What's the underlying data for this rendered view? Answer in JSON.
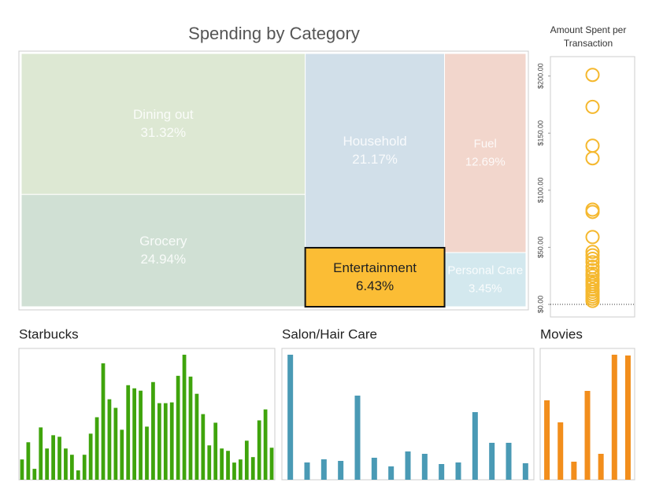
{
  "chart_data": [
    {
      "type": "treemap",
      "title": "Spending by Category",
      "categories": [
        "Dining out",
        "Grocery",
        "Household",
        "Fuel",
        "Entertainment",
        "Personal Care"
      ],
      "values": [
        31.32,
        24.94,
        21.17,
        12.69,
        6.43,
        3.45
      ],
      "value_labels": [
        "31.32%",
        "24.94%",
        "21.17%",
        "12.69%",
        "6.43%",
        "3.45%"
      ],
      "colors": [
        "#dde8d3",
        "#d0e0d4",
        "#d1dfe9",
        "#f2d6cc",
        "#fbbd35",
        "#d3e8ee"
      ],
      "selected_index": 4
    },
    {
      "type": "scatter",
      "title": "Amount Spent per Transaction",
      "color": "#f5b82e",
      "values": [
        201,
        173,
        139,
        128,
        83,
        81,
        59,
        46,
        43,
        40,
        37,
        33,
        30,
        27,
        25,
        22,
        20,
        18,
        16,
        13,
        11,
        9,
        7,
        5,
        3
      ],
      "ylim": [
        -11,
        217
      ],
      "yticks": [
        {
          "value": 0,
          "label": "$0.00"
        },
        {
          "value": 50,
          "label": "$50.00"
        },
        {
          "value": 100,
          "label": "$100.00"
        },
        {
          "value": 150,
          "label": "$150.00"
        },
        {
          "value": 200,
          "label": "$200.00"
        }
      ]
    },
    {
      "type": "bar",
      "title": "Starbucks",
      "color": "#3fa40c",
      "values": [
        26,
        48,
        14,
        67,
        40,
        57,
        55,
        40,
        32,
        12,
        32,
        59,
        80,
        149,
        103,
        92,
        64,
        121,
        117,
        114,
        68,
        125,
        98,
        98,
        99,
        133,
        160,
        132,
        110,
        84,
        44,
        73,
        40,
        37,
        22,
        26,
        50,
        29,
        76,
        90,
        41
      ]
    },
    {
      "type": "bar",
      "title": "Salon/Hair Care",
      "color": "#4a9ab5",
      "values": [
        159,
        22,
        26,
        24,
        107,
        28,
        17,
        36,
        33,
        20,
        22,
        86,
        47,
        47,
        21
      ]
    },
    {
      "type": "bar",
      "title": "Movies",
      "color": "#f28e1c",
      "values": [
        101,
        73,
        23,
        113,
        33,
        159,
        158
      ]
    }
  ]
}
